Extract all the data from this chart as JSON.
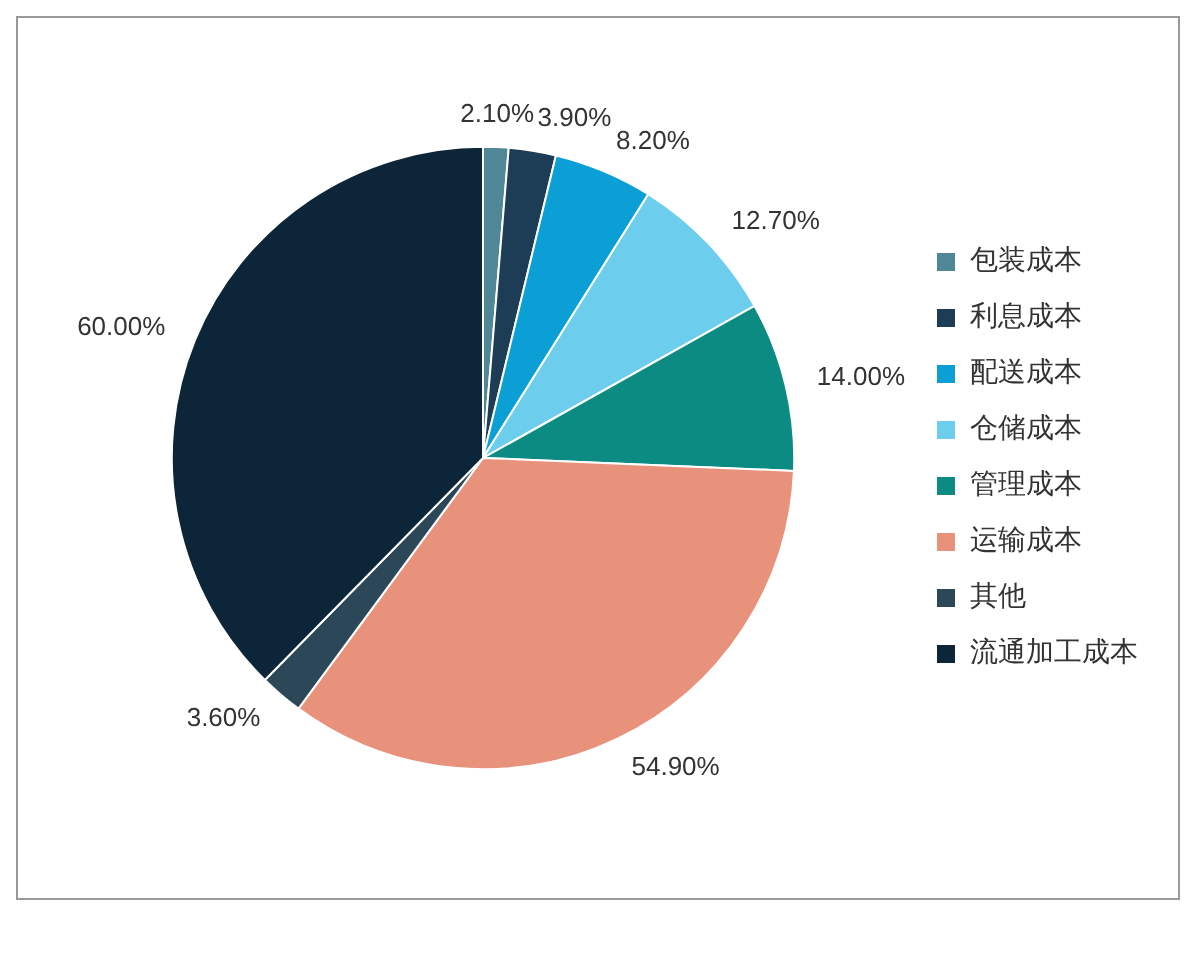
{
  "chart_data": {
    "type": "pie",
    "categories": [
      "包装成本",
      "利息成本",
      "配送成本",
      "仓储成本",
      "管理成本",
      "运输成本",
      "其他",
      "流通加工成本"
    ],
    "values": [
      2.1,
      3.9,
      8.2,
      12.7,
      14.0,
      54.9,
      3.6,
      60.0
    ],
    "value_labels": [
      "2.10%",
      "3.90%",
      "8.20%",
      "12.70%",
      "14.00%",
      "54.90%",
      "3.60%",
      "60.00%"
    ],
    "colors": [
      "#4f8796",
      "#1d3c55",
      "#0b9fd6",
      "#6ccdec",
      "#0b8b82",
      "#e8917b",
      "#2c4858",
      "#0c2538"
    ],
    "legend": "right"
  }
}
